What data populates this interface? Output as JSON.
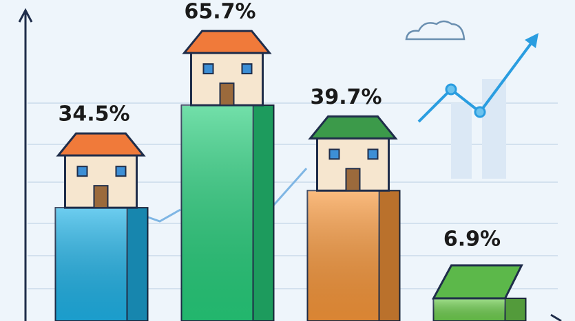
{
  "chart_data": {
    "type": "bar",
    "categories": [
      null,
      null,
      null,
      null
    ],
    "values": [
      34.5,
      65.7,
      39.7,
      6.9
    ],
    "value_labels": [
      "34.5%",
      "65.7%",
      "39.7%",
      "6.9%"
    ],
    "colors": [
      "#1fb3e8",
      "#27cf7c",
      "#f8973a",
      "#6fcf4f"
    ],
    "ylim": [
      0,
      72
    ]
  }
}
